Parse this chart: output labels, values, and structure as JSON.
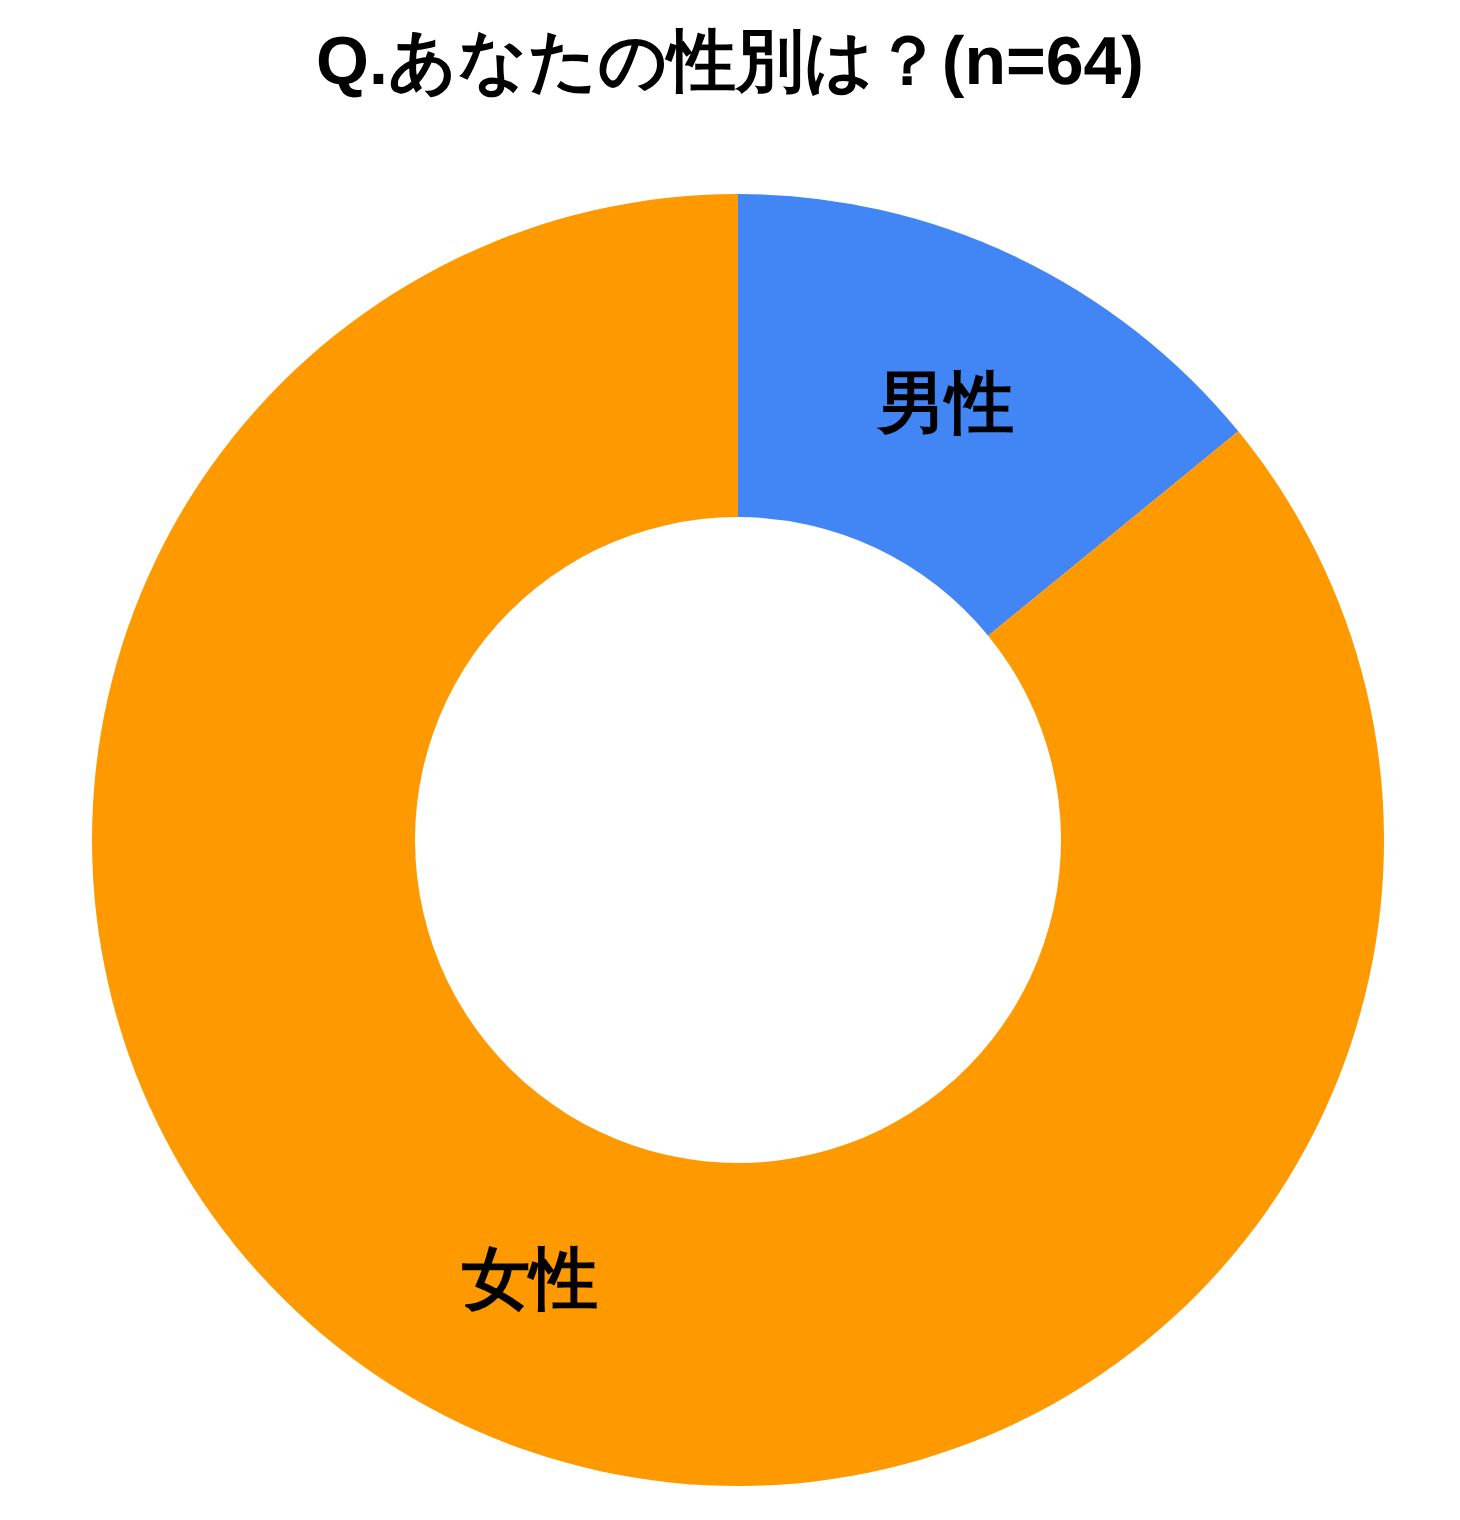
{
  "chart_data": {
    "type": "donut",
    "title": "Q.あなたの性別は？(n=64)",
    "categories": [
      "男性",
      "女性"
    ],
    "values": [
      14.1,
      85.9
    ],
    "colors": [
      "#4285f4",
      "#ff9900"
    ]
  }
}
